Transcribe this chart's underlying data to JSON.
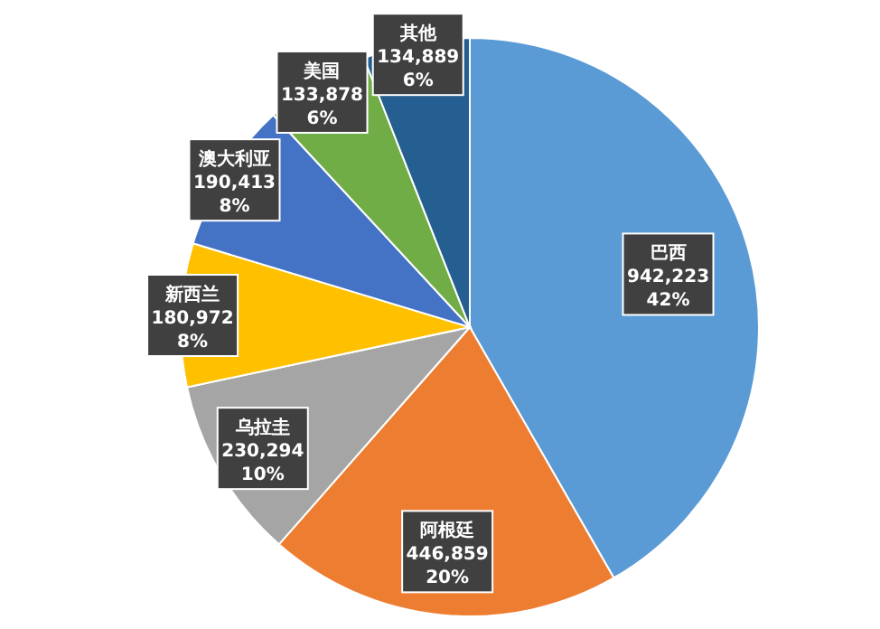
{
  "chart_data": {
    "type": "pie",
    "categories": [
      "巴西",
      "阿根廷",
      "乌拉圭",
      "新西兰",
      "澳大利亚",
      "美国",
      "其他"
    ],
    "values": [
      942223,
      446859,
      230294,
      180972,
      190413,
      133878,
      134889
    ],
    "value_labels": [
      "942,223\n42%",
      "446,859\n20%",
      "230,294\n10%",
      "180,972\n8%",
      "190,413\n8%",
      "133,878\n6%",
      "134,889\n6%"
    ],
    "colors": [
      "#5b9bd5",
      "#ed7d31",
      "#a5a5a5",
      "#ffc000",
      "#4472c4",
      "#70ad47",
      "#255e91"
    ],
    "legend": false
  }
}
